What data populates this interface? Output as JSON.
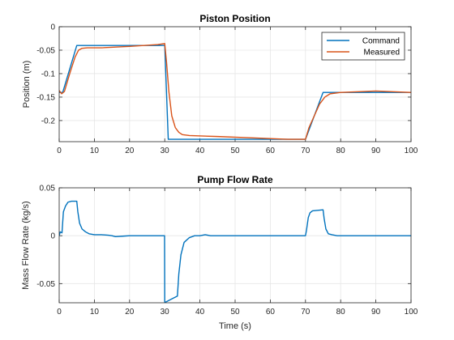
{
  "chart_data": [
    {
      "type": "line",
      "title": "Piston Position",
      "xlabel": "",
      "ylabel": "Position (m)",
      "xlim": [
        0,
        100
      ],
      "ylim": [
        -0.245,
        0
      ],
      "xticks": [
        "0",
        "10",
        "20",
        "30",
        "40",
        "50",
        "60",
        "70",
        "80",
        "90",
        "100"
      ],
      "yticks": [
        {
          "v": 0,
          "label": "0"
        },
        {
          "v": -0.05,
          "label": "-0.05"
        },
        {
          "v": -0.1,
          "label": "-0.1"
        },
        {
          "v": -0.15,
          "label": "-0.15"
        },
        {
          "v": -0.2,
          "label": "-0.2"
        }
      ],
      "grid": true,
      "legend": "top-right",
      "series": [
        {
          "name": "Command",
          "color": "#0072BD",
          "x": [
            0,
            1,
            5,
            30,
            31,
            70,
            75,
            100
          ],
          "y": [
            -0.14,
            -0.14,
            -0.04,
            -0.04,
            -0.24,
            -0.24,
            -0.14,
            -0.14
          ]
        },
        {
          "name": "Measured",
          "color": "#D95319",
          "x": [
            0,
            0.7,
            1.5,
            3,
            4.5,
            5.5,
            6.5,
            8,
            12,
            20,
            28,
            30,
            30.5,
            31.2,
            32,
            33,
            34,
            35,
            37,
            45,
            55,
            65,
            70,
            71,
            74,
            75.5,
            77,
            80,
            90,
            100
          ],
          "y": [
            -0.136,
            -0.143,
            -0.138,
            -0.1,
            -0.065,
            -0.05,
            -0.046,
            -0.045,
            -0.045,
            -0.042,
            -0.038,
            -0.036,
            -0.075,
            -0.14,
            -0.19,
            -0.215,
            -0.225,
            -0.23,
            -0.232,
            -0.234,
            -0.237,
            -0.24,
            -0.24,
            -0.215,
            -0.165,
            -0.15,
            -0.143,
            -0.14,
            -0.137,
            -0.14
          ]
        }
      ]
    },
    {
      "type": "line",
      "title": "Pump Flow Rate",
      "xlabel": "Time (s)",
      "ylabel": "Mass Flow Rate (kg/s)",
      "xlim": [
        0,
        100
      ],
      "ylim": [
        -0.07,
        0.05
      ],
      "xticks": [
        "0",
        "10",
        "20",
        "30",
        "40",
        "50",
        "60",
        "70",
        "80",
        "90",
        "100"
      ],
      "yticks": [
        {
          "v": 0.05,
          "label": "0.05"
        },
        {
          "v": 0,
          "label": "0"
        },
        {
          "v": -0.05,
          "label": "-0.05"
        }
      ],
      "grid": true,
      "series": [
        {
          "name": "",
          "color": "#0072BD",
          "x": [
            0,
            0.3,
            0.8,
            1.2,
            1.8,
            2.5,
            3.5,
            4.5,
            5,
            5.3,
            5.8,
            6.5,
            7.5,
            8.5,
            10,
            12,
            14,
            15,
            16,
            18,
            20,
            25,
            29.95,
            30,
            30.4,
            32,
            33.6,
            34,
            34.6,
            35.5,
            37,
            38.5,
            40,
            41.5,
            43,
            50,
            60,
            70,
            70.3,
            70.8,
            71.3,
            72,
            75,
            75.3,
            75.8,
            76.5,
            77.5,
            79,
            80,
            90,
            100
          ],
          "y": [
            0,
            0.004,
            0.003,
            0.025,
            0.031,
            0.035,
            0.036,
            0.036,
            0.036,
            0.025,
            0.013,
            0.007,
            0.004,
            0.002,
            0.001,
            0.001,
            0.0005,
            0,
            -0.001,
            -0.0005,
            0,
            0,
            0,
            -0.07,
            -0.069,
            -0.066,
            -0.063,
            -0.04,
            -0.02,
            -0.007,
            -0.002,
            0,
            0,
            0.001,
            0,
            0,
            0,
            0,
            0.006,
            0.019,
            0.024,
            0.026,
            0.027,
            0.018,
            0.007,
            0.002,
            0.001,
            0,
            0,
            0,
            0
          ]
        }
      ]
    }
  ]
}
